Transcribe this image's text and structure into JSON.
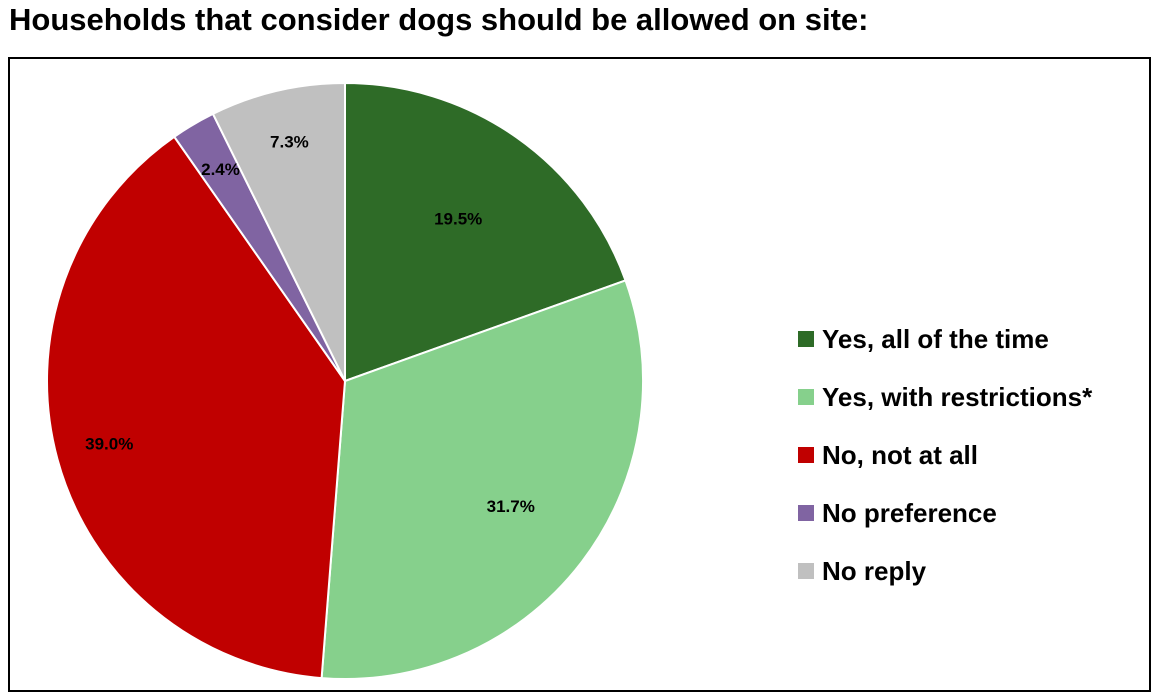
{
  "chart_data": {
    "type": "pie",
    "title": "Households that consider dogs should be allowed on site:",
    "categories": [
      "Yes, all of the time",
      "Yes, with restrictions*",
      "No, not at all",
      "No preference",
      "No reply"
    ],
    "values": [
      19.5,
      31.7,
      39.0,
      2.4,
      7.3
    ],
    "value_labels": [
      "19.5%",
      "31.7%",
      "39.0%",
      "2.4%",
      "7.3%"
    ],
    "colors": [
      "#2e6b27",
      "#86d08c",
      "#c00000",
      "#8064a2",
      "#c0c0c0"
    ],
    "start": "top, clockwise",
    "legend_position": "right"
  }
}
